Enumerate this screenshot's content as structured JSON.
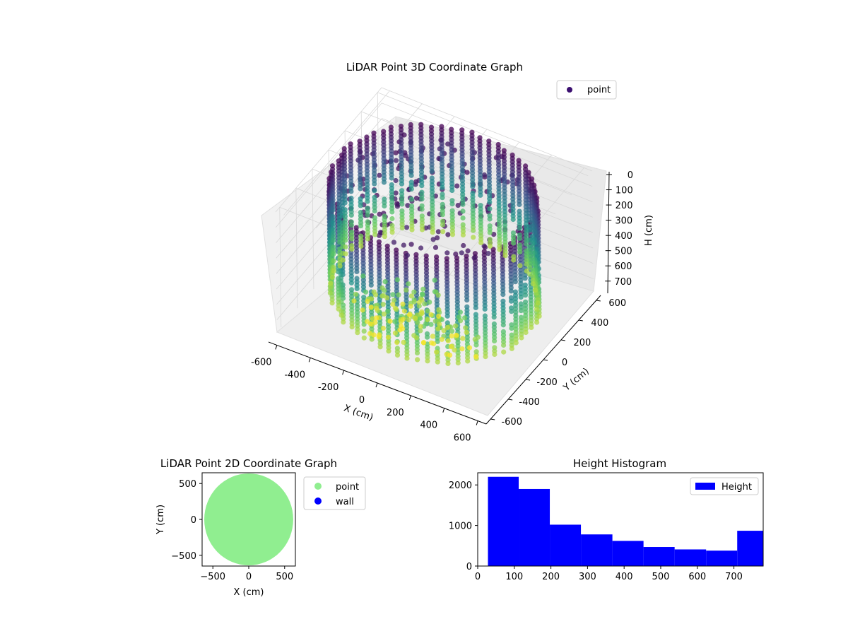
{
  "chart_data": [
    {
      "type": "scatter",
      "title": "LiDAR Point 3D Coordinate Graph",
      "xlabel": "X (cm)",
      "ylabel": "Y (cm)",
      "zlabel": "H (cm)",
      "xlim": [
        -650,
        650
      ],
      "ylim": [
        -650,
        650
      ],
      "zlim": [
        0,
        780
      ],
      "z_inverted": true,
      "xticks": [
        -600,
        -400,
        -200,
        0,
        200,
        400,
        600
      ],
      "yticks": [
        -600,
        -400,
        -200,
        0,
        200,
        400,
        600
      ],
      "zticks": [
        0,
        100,
        200,
        300,
        400,
        500,
        600,
        700
      ],
      "legend": [
        "point"
      ],
      "legend_position": "top-right",
      "colormap": "viridis",
      "description_points": {
        "wall_radius_approx": 580,
        "height_range": [
          0,
          780
        ]
      }
    },
    {
      "type": "scatter",
      "title": "LiDAR Point 2D Coordinate Graph",
      "xlabel": "X (cm)",
      "ylabel": "Y (cm)",
      "xlim": [
        -650,
        650
      ],
      "ylim": [
        -650,
        650
      ],
      "xticks": [
        -500,
        0,
        500
      ],
      "yticks": [
        -500,
        0,
        500
      ],
      "series": [
        {
          "name": "point",
          "color": "#90ee90"
        },
        {
          "name": "wall",
          "color": "#0000ff"
        }
      ],
      "legend_position": "outside-right"
    },
    {
      "type": "bar",
      "title": "Height Histogram",
      "xlabel": "",
      "ylabel": "",
      "xlim": [
        0,
        780
      ],
      "ylim": [
        0,
        2300
      ],
      "xticks": [
        0,
        100,
        200,
        300,
        400,
        500,
        600,
        700
      ],
      "yticks": [
        0,
        1000,
        2000
      ],
      "bins": [
        {
          "start": 28,
          "end": 112,
          "count": 2200
        },
        {
          "start": 112,
          "end": 197,
          "count": 1900
        },
        {
          "start": 197,
          "end": 282,
          "count": 1020
        },
        {
          "start": 282,
          "end": 368,
          "count": 780
        },
        {
          "start": 368,
          "end": 453,
          "count": 620
        },
        {
          "start": 453,
          "end": 538,
          "count": 470
        },
        {
          "start": 538,
          "end": 624,
          "count": 410
        },
        {
          "start": 624,
          "end": 709,
          "count": 380
        },
        {
          "start": 709,
          "end": 780,
          "count": 870
        }
      ],
      "series": [
        {
          "name": "Height",
          "color": "#0000ff"
        }
      ],
      "legend_position": "top-right"
    }
  ]
}
